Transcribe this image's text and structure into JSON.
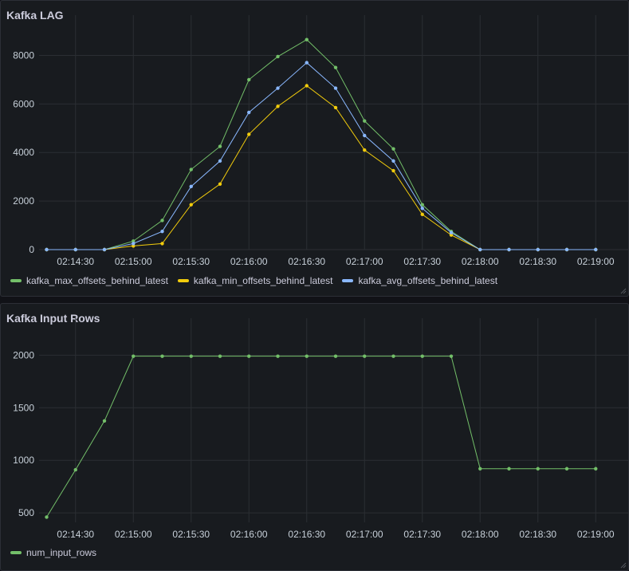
{
  "charts": [
    {
      "id": "lag",
      "title": "Kafka LAG",
      "chart_data": {
        "type": "line",
        "x": [
          "02:14:15",
          "02:14:30",
          "02:14:45",
          "02:15:00",
          "02:15:15",
          "02:15:30",
          "02:15:45",
          "02:16:00",
          "02:16:15",
          "02:16:30",
          "02:16:45",
          "02:17:00",
          "02:17:15",
          "02:17:30",
          "02:17:45",
          "02:18:00",
          "02:18:15",
          "02:18:30",
          "02:18:45",
          "02:19:00"
        ],
        "x_tick_labels": [
          "02:14:30",
          "02:15:00",
          "02:15:30",
          "02:16:00",
          "02:16:30",
          "02:17:00",
          "02:17:30",
          "02:18:00",
          "02:18:30",
          "02:19:00"
        ],
        "y_ticks": [
          0,
          2000,
          4000,
          6000,
          8000
        ],
        "ylim": [
          0,
          9000
        ],
        "grid": true,
        "legend": "bottom",
        "series": [
          {
            "name": "kafka_max_offsets_behind_latest",
            "color": "#73bf69",
            "values": [
              0,
              0,
              0,
              350,
              1200,
              3300,
              4250,
              7000,
              7950,
              8650,
              7500,
              5300,
              4150,
              1850,
              750,
              0,
              0,
              0,
              0,
              0
            ]
          },
          {
            "name": "kafka_min_offsets_behind_latest",
            "color": "#f2cc0c",
            "values": [
              0,
              0,
              0,
              150,
              250,
              1850,
              2700,
              4750,
              5900,
              6750,
              5850,
              4100,
              3250,
              1450,
              600,
              0,
              0,
              0,
              0,
              0
            ]
          },
          {
            "name": "kafka_avg_offsets_behind_latest",
            "color": "#8ab8ff",
            "values": [
              0,
              0,
              0,
              250,
              750,
              2600,
              3650,
              5650,
              6650,
              7700,
              6650,
              4700,
              3650,
              1700,
              700,
              0,
              0,
              0,
              0,
              0
            ]
          }
        ]
      }
    },
    {
      "id": "rows",
      "title": "Kafka Input Rows",
      "chart_data": {
        "type": "line",
        "x": [
          "02:14:15",
          "02:14:30",
          "02:14:45",
          "02:15:00",
          "02:15:15",
          "02:15:30",
          "02:15:45",
          "02:16:00",
          "02:16:15",
          "02:16:30",
          "02:16:45",
          "02:17:00",
          "02:17:15",
          "02:17:30",
          "02:17:45",
          "02:18:00",
          "02:18:15",
          "02:18:30",
          "02:18:45",
          "02:19:00"
        ],
        "x_tick_labels": [
          "02:14:30",
          "02:15:00",
          "02:15:30",
          "02:16:00",
          "02:16:30",
          "02:17:00",
          "02:17:30",
          "02:18:00",
          "02:18:30",
          "02:19:00"
        ],
        "y_ticks": [
          500,
          1000,
          1500,
          2000
        ],
        "ylim": [
          410,
          2200
        ],
        "grid": true,
        "legend": "bottom",
        "series": [
          {
            "name": "num_input_rows",
            "color": "#73bf69",
            "values": [
              460,
              910,
              1375,
              1990,
              1990,
              1990,
              1990,
              1990,
              1990,
              1990,
              1990,
              1990,
              1990,
              1990,
              1990,
              920,
              920,
              920,
              920,
              920
            ]
          }
        ]
      }
    }
  ]
}
